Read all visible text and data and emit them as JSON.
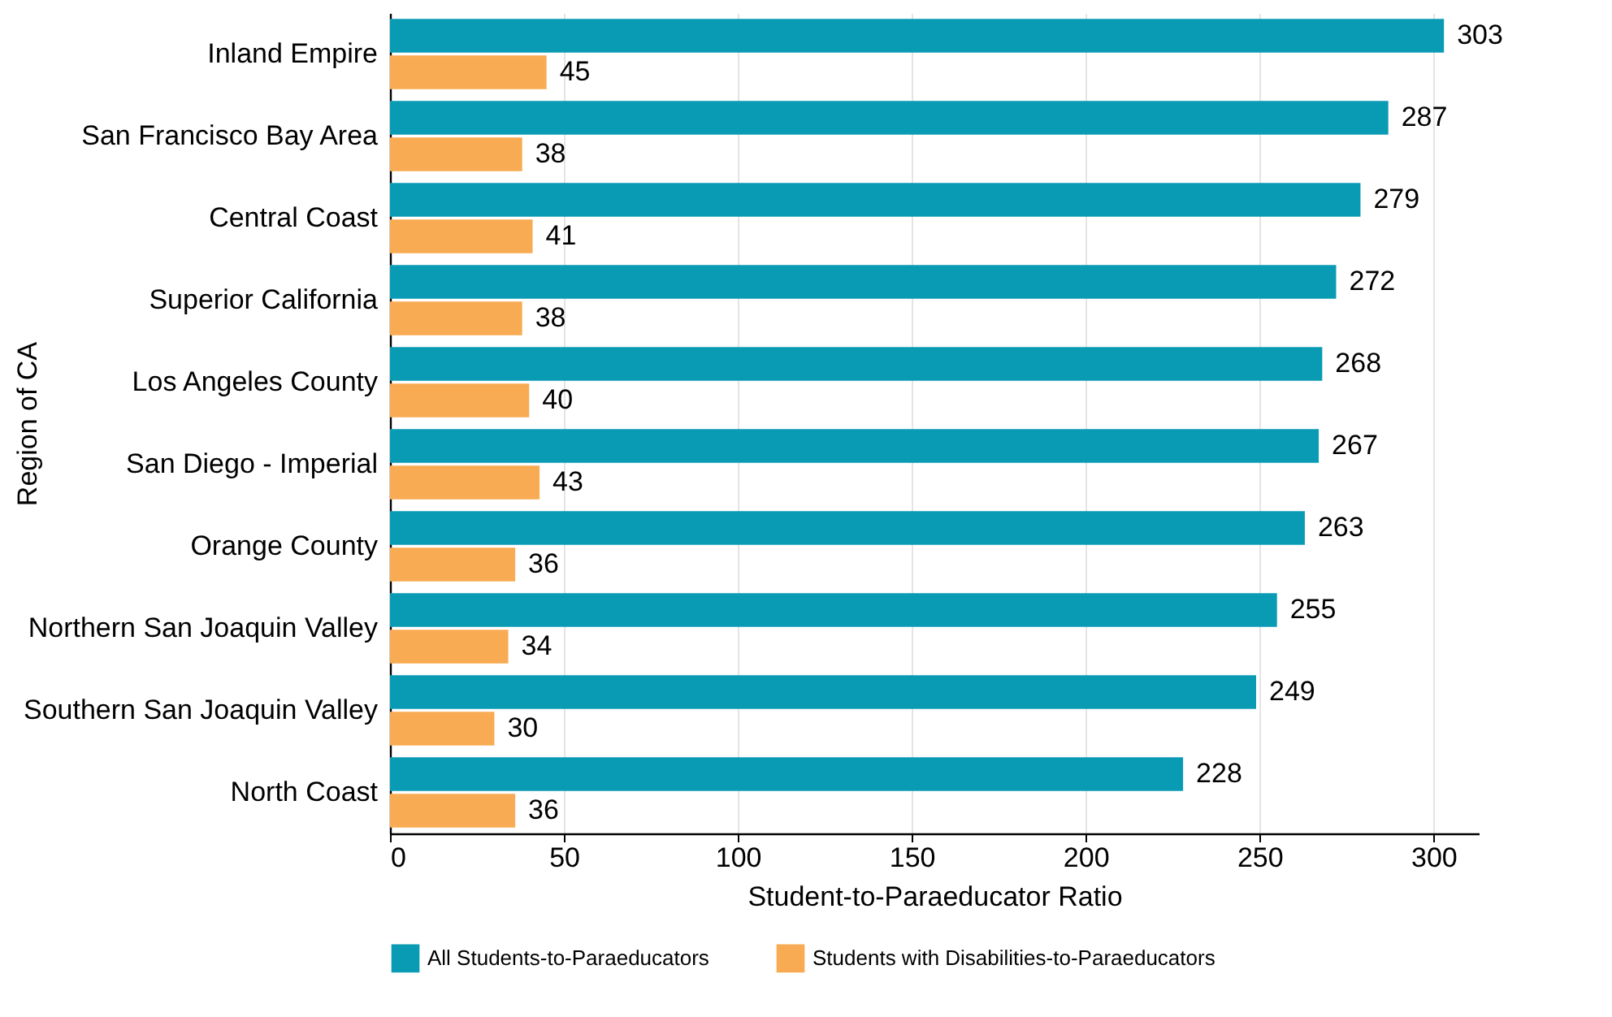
{
  "chart_data": {
    "type": "bar",
    "orientation": "horizontal",
    "xlabel": "Student-to-Paraeducator Ratio",
    "ylabel": "Region of CA",
    "categories": [
      "Inland Empire",
      "San Francisco Bay Area",
      "Central Coast",
      "Superior California",
      "Los Angeles County",
      "San Diego - Imperial",
      "Orange County",
      "Northern San Joaquin Valley",
      "Southern San Joaquin Valley",
      "North Coast"
    ],
    "series": [
      {
        "name": "All Students-to-Paraeducators",
        "color": "#0a9bb4",
        "values": [
          303,
          287,
          279,
          272,
          268,
          267,
          263,
          255,
          249,
          228
        ]
      },
      {
        "name": "Students with Disabilities-to-Paraeducators",
        "color": "#f8ab52",
        "values": [
          45,
          38,
          41,
          38,
          40,
          43,
          36,
          34,
          30,
          36
        ]
      }
    ],
    "xlim": [
      0,
      313
    ],
    "xticks": [
      0,
      50,
      100,
      150,
      200,
      250,
      300
    ],
    "grid": "x",
    "legend": "bottom",
    "data_labels": true
  }
}
